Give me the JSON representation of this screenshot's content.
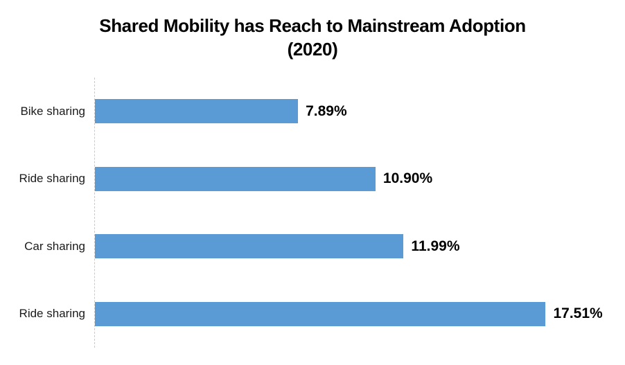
{
  "title": {
    "line1": "Shared Mobility has Reach to Mainstream Adoption",
    "line2": "(2020)"
  },
  "chart_data": {
    "type": "bar",
    "orientation": "horizontal",
    "title": "Shared Mobility has Reach to Mainstream Adoption (2020)",
    "categories": [
      "Bike sharing",
      "Ride sharing",
      "Car sharing",
      "Ride sharing"
    ],
    "values": [
      7.89,
      10.9,
      11.99,
      17.51
    ],
    "value_labels": [
      "7.89%",
      "10.90%",
      "11.99%",
      "17.51%"
    ],
    "xlabel": "",
    "ylabel": "",
    "xlim": [
      0,
      20
    ],
    "grid": false,
    "legend": false,
    "bar_color": "#5B9BD5",
    "axis_line_color": "#C9C9C9",
    "title_color": "#000000",
    "category_label_color": "#1A1A1A",
    "value_label_color": "#000000"
  }
}
